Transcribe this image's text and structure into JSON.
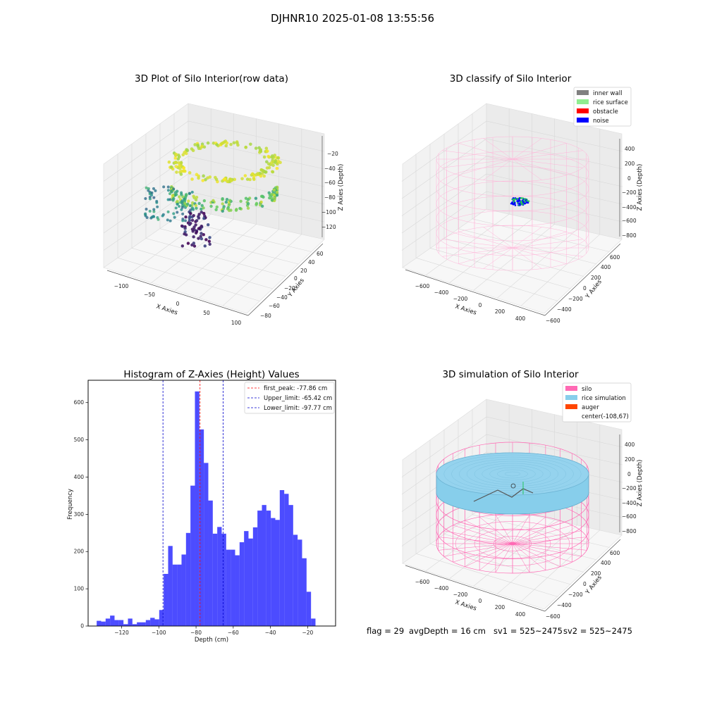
{
  "suptitle": "DJHNR10 2025-01-08 13:55:56",
  "panels": {
    "raw": {
      "title": "3D Plot of Silo Interior(row data)",
      "xlabel": "X Axies",
      "ylabel": "Y Axies",
      "zlabel": "Z Axies (Depth)",
      "xticks": [
        "−100",
        "−50",
        "0",
        "50",
        "100"
      ],
      "yticks": [
        "−80",
        "−60",
        "−40",
        "−20",
        "0",
        "20",
        "40",
        "60"
      ],
      "zticks": [
        "−20",
        "−40",
        "−60",
        "−80",
        "−100",
        "−120"
      ],
      "colormap": "viridis"
    },
    "classify": {
      "title": "3D classify of Silo Interior",
      "xlabel": "X Axies",
      "ylabel": "Y Axies",
      "zlabel": "Z Axies (Depth)",
      "xticks": [
        "−600",
        "−400",
        "−200",
        "0",
        "200",
        "400"
      ],
      "yticks": [
        "−600",
        "−400",
        "−200",
        "0",
        "200",
        "400",
        "600"
      ],
      "zticks": [
        "400",
        "200",
        "0",
        "−200",
        "−400",
        "−600",
        "−800"
      ],
      "legend": [
        {
          "label": "inner wall",
          "color": "#808080"
        },
        {
          "label": "rice surface",
          "color": "#90ee90"
        },
        {
          "label": "obstacle",
          "color": "#ff0000"
        },
        {
          "label": "noise",
          "color": "#0000ff"
        }
      ],
      "wall_color": "#ffb6d9"
    },
    "simulation": {
      "title": "3D simulation of Silo Interior",
      "xlabel": "X Axies",
      "ylabel": "Y Axies",
      "zlabel": "Z Axies (Depth)",
      "xticks": [
        "−600",
        "−400",
        "−200",
        "0",
        "200",
        "400"
      ],
      "yticks": [
        "−600",
        "−400",
        "−200",
        "0",
        "200",
        "400",
        "600"
      ],
      "zticks": [
        "400",
        "200",
        "0",
        "−200",
        "−400",
        "−600",
        "−800"
      ],
      "legend": [
        {
          "label": "silo",
          "color": "#ff69b4"
        },
        {
          "label": "rice simulation",
          "color": "#87ceeb"
        },
        {
          "label": "auger",
          "color": "#ff4500"
        },
        {
          "label": "center(-108,67)",
          "color": ""
        }
      ]
    }
  },
  "chart_data": {
    "type": "bar",
    "title": "Histogram of Z-Axies (Height) Values",
    "xlabel": "Depth (cm)",
    "ylabel": "Frequency",
    "xlim": [
      -138,
      -5
    ],
    "ylim": [
      0,
      660
    ],
    "xticks": [
      -120,
      -100,
      -80,
      -60,
      -40,
      -20
    ],
    "xtick_labels": [
      "−120",
      "−100",
      "−80",
      "−60",
      "−40",
      "−20"
    ],
    "yticks": [
      0,
      100,
      200,
      300,
      400,
      500,
      600
    ],
    "bar_color": "#0000ff",
    "bin_start": -133.4,
    "bin_width": 2.4,
    "values": [
      14,
      12,
      20,
      28,
      16,
      16,
      5,
      20,
      5,
      10,
      10,
      16,
      22,
      18,
      43,
      140,
      215,
      165,
      165,
      192,
      250,
      377,
      630,
      528,
      438,
      337,
      248,
      266,
      248,
      205,
      205,
      190,
      225,
      255,
      235,
      265,
      310,
      325,
      310,
      290,
      285,
      365,
      355,
      325,
      245,
      232,
      182,
      92,
      20
    ],
    "vlines": [
      {
        "x": -77.86,
        "label": "first_peak: -77.86 cm",
        "color": "#ff0000"
      },
      {
        "x": -65.42,
        "label": "Upper_limit: -65.42 cm",
        "color": "#0000cc"
      },
      {
        "x": -97.77,
        "label": "Lower_limit: -97.77 cm",
        "color": "#0000cc"
      }
    ],
    "legend_position": "upper right"
  },
  "status": {
    "flag": "flag = 29",
    "avg_depth": "avgDepth = 16 cm",
    "sv1": "sv1 = 525~2475",
    "sv2": "sv2 = 525~2475"
  }
}
